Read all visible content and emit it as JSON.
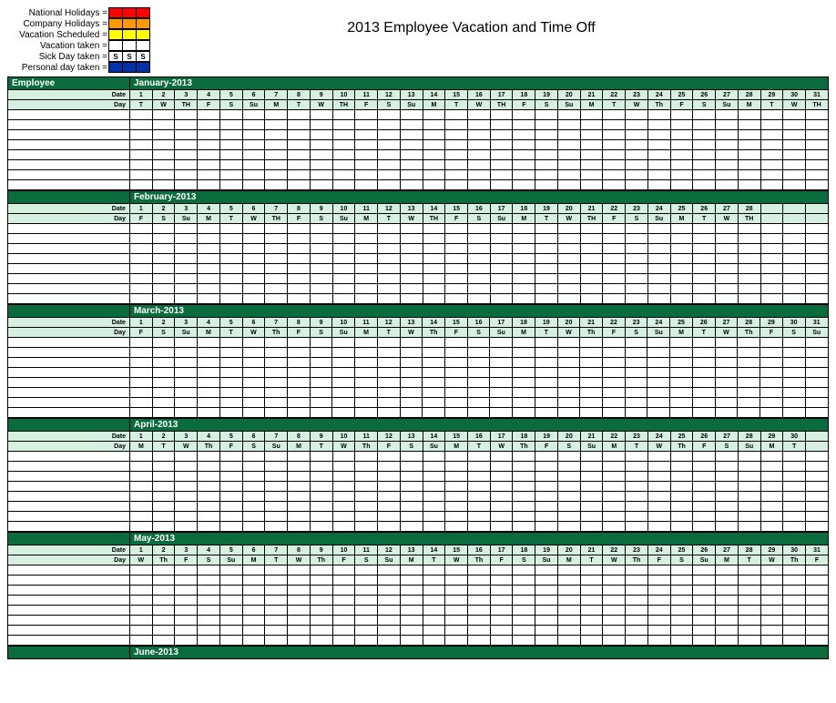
{
  "title": "2013 Employee Vacation and Time Off",
  "legend": {
    "items": [
      {
        "label": "National Holidays =",
        "colors": [
          "#ff0000",
          "#ff0000",
          "#ff0000"
        ],
        "texts": [
          "",
          "",
          ""
        ]
      },
      {
        "label": "Company Holidays =",
        "colors": [
          "#ff9900",
          "#ff9900",
          "#ff9900"
        ],
        "texts": [
          "",
          "",
          ""
        ]
      },
      {
        "label": "Vacation Scheduled =",
        "colors": [
          "#ffff00",
          "#ffff00",
          "#ffff00"
        ],
        "texts": [
          "",
          "",
          ""
        ]
      },
      {
        "label": "Vacation taken =",
        "colors": [
          "#ffffff",
          "#ffffff",
          "#ffffff"
        ],
        "texts": [
          "",
          "",
          ""
        ]
      },
      {
        "label": "Sick Day taken =",
        "colors": [
          "#ffffff",
          "#ffffff",
          "#ffffff"
        ],
        "texts": [
          "S",
          "S",
          "S"
        ]
      },
      {
        "label": "Personal day taken =",
        "colors": [
          "#0033aa",
          "#0033aa",
          "#0033aa"
        ],
        "texts": [
          "",
          "",
          ""
        ]
      }
    ]
  },
  "employee_label": "Employee",
  "date_label": "Date",
  "day_label": "Day",
  "colors": {
    "header_bg": "#0a6b3d",
    "header_fg": "#ffffff",
    "subheader_bg": "#d5f0e0",
    "grid_border": "#000000"
  },
  "empty_rows_per_month": 8,
  "months": [
    {
      "name": "January-2013",
      "show_employee_header": true,
      "dates": [
        "1",
        "2",
        "3",
        "4",
        "5",
        "6",
        "7",
        "8",
        "9",
        "10",
        "11",
        "12",
        "13",
        "14",
        "15",
        "16",
        "17",
        "18",
        "19",
        "20",
        "21",
        "22",
        "23",
        "24",
        "25",
        "26",
        "27",
        "28",
        "29",
        "30",
        "31"
      ],
      "days": [
        "T",
        "W",
        "TH",
        "F",
        "S",
        "Su",
        "M",
        "T",
        "W",
        "TH",
        "F",
        "S",
        "Su",
        "M",
        "T",
        "W",
        "TH",
        "F",
        "S",
        "Su",
        "M",
        "T",
        "W",
        "Th",
        "F",
        "S",
        "Su",
        "M",
        "T",
        "W",
        "TH"
      ]
    },
    {
      "name": "February-2013",
      "show_employee_header": false,
      "dates": [
        "1",
        "2",
        "3",
        "4",
        "5",
        "6",
        "7",
        "8",
        "9",
        "10",
        "11",
        "12",
        "13",
        "14",
        "15",
        "16",
        "17",
        "18",
        "19",
        "20",
        "21",
        "22",
        "23",
        "24",
        "25",
        "26",
        "27",
        "28",
        "",
        "",
        ""
      ],
      "days": [
        "F",
        "S",
        "Su",
        "M",
        "T",
        "W",
        "TH",
        "F",
        "S",
        "Su",
        "M",
        "T",
        "W",
        "TH",
        "F",
        "S",
        "Su",
        "M",
        "T",
        "W",
        "TH",
        "F",
        "S",
        "Su",
        "M",
        "T",
        "W",
        "TH",
        "",
        "",
        ""
      ]
    },
    {
      "name": "March-2013",
      "show_employee_header": false,
      "dates": [
        "1",
        "2",
        "3",
        "4",
        "5",
        "6",
        "7",
        "8",
        "9",
        "10",
        "11",
        "12",
        "13",
        "14",
        "15",
        "16",
        "17",
        "18",
        "19",
        "20",
        "21",
        "22",
        "23",
        "24",
        "25",
        "26",
        "27",
        "28",
        "29",
        "30",
        "31"
      ],
      "days": [
        "F",
        "S",
        "Su",
        "M",
        "T",
        "W",
        "Th",
        "F",
        "S",
        "Su",
        "M",
        "T",
        "W",
        "Th",
        "F",
        "S",
        "Su",
        "M",
        "T",
        "W",
        "Th",
        "F",
        "S",
        "Su",
        "M",
        "T",
        "W",
        "Th",
        "F",
        "S",
        "Su"
      ]
    },
    {
      "name": "April-2013",
      "show_employee_header": false,
      "dates": [
        "1",
        "2",
        "3",
        "4",
        "5",
        "6",
        "7",
        "8",
        "9",
        "10",
        "11",
        "12",
        "13",
        "14",
        "15",
        "16",
        "17",
        "18",
        "19",
        "20",
        "21",
        "22",
        "23",
        "24",
        "25",
        "26",
        "27",
        "28",
        "29",
        "30",
        ""
      ],
      "days": [
        "M",
        "T",
        "W",
        "Th",
        "F",
        "S",
        "Su",
        "M",
        "T",
        "W",
        "Th",
        "F",
        "S",
        "Su",
        "M",
        "T",
        "W",
        "Th",
        "F",
        "S",
        "Su",
        "M",
        "T",
        "W",
        "Th",
        "F",
        "S",
        "Su",
        "M",
        "T",
        ""
      ]
    },
    {
      "name": "May-2013",
      "show_employee_header": false,
      "dates": [
        "1",
        "2",
        "3",
        "4",
        "5",
        "6",
        "7",
        "8",
        "9",
        "10",
        "11",
        "12",
        "13",
        "14",
        "15",
        "16",
        "17",
        "18",
        "19",
        "20",
        "21",
        "22",
        "23",
        "24",
        "25",
        "26",
        "27",
        "28",
        "29",
        "30",
        "31"
      ],
      "days": [
        "W",
        "Th",
        "F",
        "S",
        "Su",
        "M",
        "T",
        "W",
        "Th",
        "F",
        "S",
        "Su",
        "M",
        "T",
        "W",
        "Th",
        "F",
        "S",
        "Su",
        "M",
        "T",
        "W",
        "Th",
        "F",
        "S",
        "Su",
        "M",
        "T",
        "W",
        "Th",
        "F"
      ]
    },
    {
      "name": "June-2013",
      "show_employee_header": false,
      "dates": [],
      "days": []
    }
  ]
}
